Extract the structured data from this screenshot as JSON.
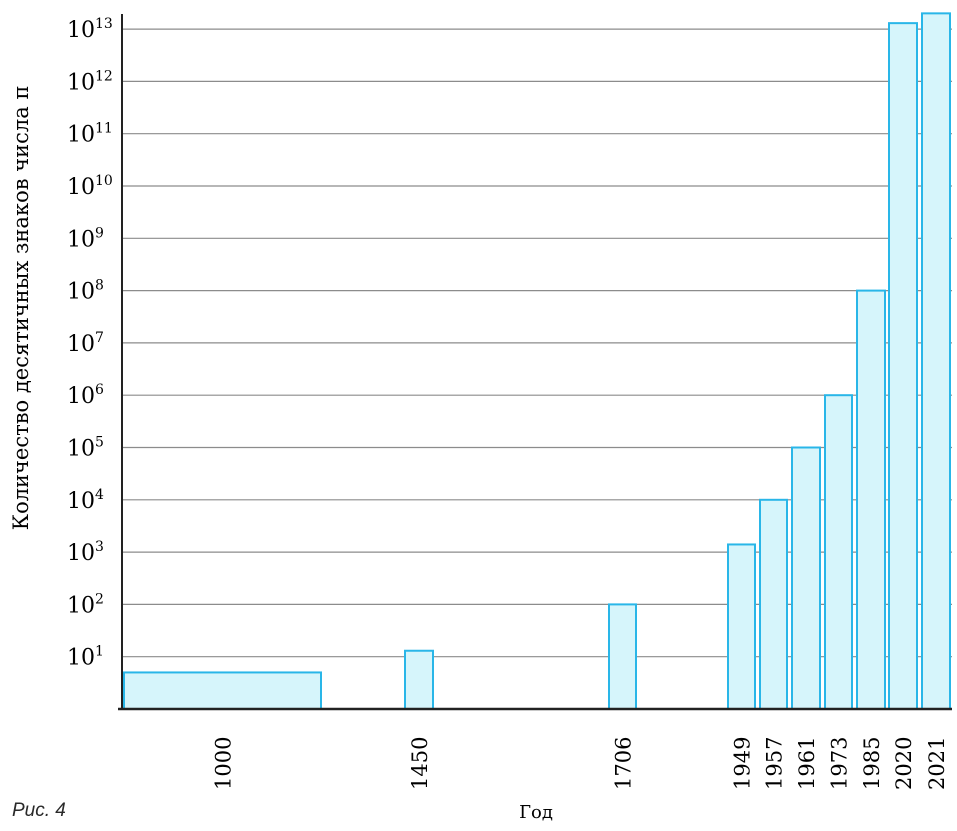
{
  "figure_label": "Рис. 4",
  "chart_data": {
    "type": "bar",
    "xlabel": "Год",
    "ylabel": "Количество десятичных знаков числа π",
    "y_scale": "log",
    "ylim": [
      1,
      10000000000000
    ],
    "y_ticks": [
      {
        "base": "10",
        "exp": "1"
      },
      {
        "base": "10",
        "exp": "2"
      },
      {
        "base": "10",
        "exp": "3"
      },
      {
        "base": "10",
        "exp": "4"
      },
      {
        "base": "10",
        "exp": "5"
      },
      {
        "base": "10",
        "exp": "6"
      },
      {
        "base": "10",
        "exp": "7"
      },
      {
        "base": "10",
        "exp": "8"
      },
      {
        "base": "10",
        "exp": "9"
      },
      {
        "base": "10",
        "exp": "10"
      },
      {
        "base": "10",
        "exp": "11"
      },
      {
        "base": "10",
        "exp": "12"
      },
      {
        "base": "10",
        "exp": "13"
      }
    ],
    "grid": true,
    "categories": [
      "1000",
      "1450",
      "1706",
      "1949",
      "1957",
      "1961",
      "1973",
      "1985",
      "2020",
      "2021"
    ],
    "values": [
      5,
      13,
      100,
      1400,
      10000,
      100000,
      1000000,
      100000000,
      13000000000000,
      20000000000000
    ],
    "colors": {
      "bar_fill": "#d6f5fb",
      "bar_stroke": "#29b6e8",
      "grid": "#8c8c8c",
      "axis": "#222222"
    }
  }
}
